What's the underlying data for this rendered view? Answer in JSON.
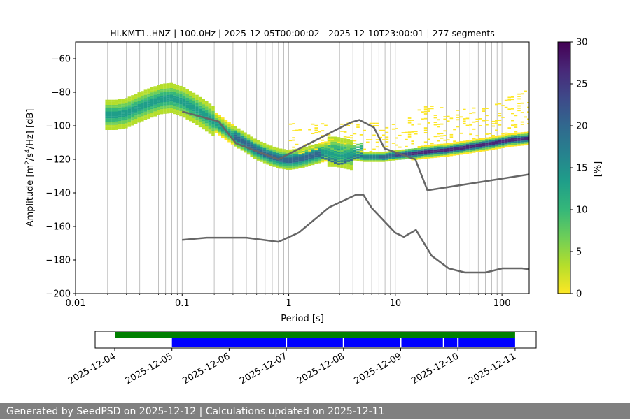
{
  "chart_data": {
    "type": "heatmap",
    "title": "HI.KMT1..HNZ | 100.0Hz | 2025-12-05T00:00:02 - 2025-12-10T23:00:01 | 277 segments",
    "xlabel": "Period [s]",
    "ylabel_parts": [
      "Amplitude [m",
      "2",
      "/s",
      "4",
      "/Hz] [dB]"
    ],
    "xscale": "log",
    "xlim": [
      0.01,
      180
    ],
    "ylim": [
      -200,
      -50
    ],
    "xticks": [
      0.01,
      0.1,
      1,
      10,
      100
    ],
    "xtick_labels": [
      "0.01",
      "0.1",
      "1",
      "10",
      "100"
    ],
    "yticks": [
      -200,
      -180,
      -160,
      -140,
      -120,
      -100,
      -80,
      -60
    ],
    "ytick_labels": [
      "−200",
      "−180",
      "−160",
      "−140",
      "−120",
      "−100",
      "−80",
      "−60"
    ],
    "colorbar": {
      "label": "[%]",
      "range": [
        0,
        30
      ],
      "ticks": [
        0,
        5,
        10,
        15,
        20,
        25,
        30
      ],
      "tick_labels": [
        "0",
        "5",
        "10",
        "15",
        "20",
        "25",
        "30"
      ],
      "colormap": [
        "#fde725",
        "#b5de2b",
        "#6ece58",
        "#35b779",
        "#1f9e89",
        "#26828e",
        "#31688e",
        "#3e4989",
        "#482878",
        "#440154"
      ]
    },
    "grid": {
      "x_minor_periods": [
        0.02,
        0.03,
        0.04,
        0.05,
        0.06,
        0.07,
        0.08,
        0.09,
        0.2,
        0.3,
        0.4,
        0.5,
        0.6,
        0.7,
        0.8,
        0.9,
        2,
        3,
        4,
        5,
        6,
        7,
        8,
        9,
        20,
        30,
        40,
        50,
        60,
        70,
        80,
        90
      ]
    },
    "series": [
      {
        "name": "mode",
        "period": [
          0.02,
          0.024,
          0.03,
          0.038,
          0.05,
          0.065,
          0.08,
          0.1,
          0.13,
          0.17,
          0.22,
          0.3,
          0.4,
          0.5,
          0.65,
          0.8,
          1,
          1.3,
          1.7,
          2.2,
          2.8,
          3.3,
          4,
          5,
          6.5,
          8,
          10,
          15,
          20,
          30,
          50,
          80,
          120,
          180
        ],
        "db": [
          -93,
          -93,
          -92,
          -89,
          -86,
          -83.5,
          -83,
          -85,
          -89,
          -94,
          -99,
          -105,
          -110,
          -114,
          -117,
          -119,
          -120,
          -119,
          -117,
          -115,
          -115,
          -116,
          -117,
          -118,
          -118,
          -118,
          -117,
          -116,
          -115,
          -114,
          -112,
          -110,
          -108,
          -107
        ]
      },
      {
        "name": "NHNM",
        "period": [
          0.1,
          0.22,
          0.32,
          0.8,
          3.8,
          4.6,
          6.3,
          7.9,
          15.4,
          20,
          354.8
        ],
        "db": [
          -91.5,
          -97.4,
          -110.5,
          -120,
          -98,
          -96.5,
          -101,
          -113.5,
          -120,
          -138.5,
          -126
        ]
      },
      {
        "name": "NLNM",
        "period": [
          0.1,
          0.17,
          0.4,
          0.8,
          1.24,
          2.4,
          4.3,
          5,
          6,
          10,
          12,
          15.6,
          21.9,
          31.6,
          45,
          70,
          101,
          154,
          180
        ],
        "db": [
          -168,
          -166.7,
          -166.7,
          -169.2,
          -163.7,
          -148.6,
          -141.1,
          -141.1,
          -149,
          -163.8,
          -166.2,
          -162.1,
          -177.5,
          -185,
          -187.5,
          -187.5,
          -185,
          -185,
          -185.5
        ]
      },
      {
        "name": "scatter_upper",
        "period": [
          12,
          15,
          20,
          28,
          40,
          60,
          90,
          130,
          180
        ],
        "db": [
          -98,
          -92,
          -87,
          -88,
          -90,
          -88,
          -85,
          -81,
          -78
        ]
      }
    ]
  },
  "timeline": {
    "date_labels": [
      "2025-12-04",
      "2025-12-05",
      "2025-12-06",
      "2025-12-07",
      "2025-12-08",
      "2025-12-09",
      "2025-12-10",
      "2025-12-11"
    ],
    "green_day_range": [
      0,
      7
    ],
    "blue_day_range": [
      1,
      7
    ],
    "gaps_days": [
      3,
      4,
      5,
      5.75,
      6
    ],
    "green_color": "#008000",
    "blue_color": "#0000ff"
  },
  "footer": {
    "text": "Generated by SeedPSD on 2025-12-12 | Calculations updated on 2025-12-11"
  },
  "colors": {
    "model_line": "#666666",
    "grid": "#b0b0b0",
    "footer_bg": "#808080"
  }
}
